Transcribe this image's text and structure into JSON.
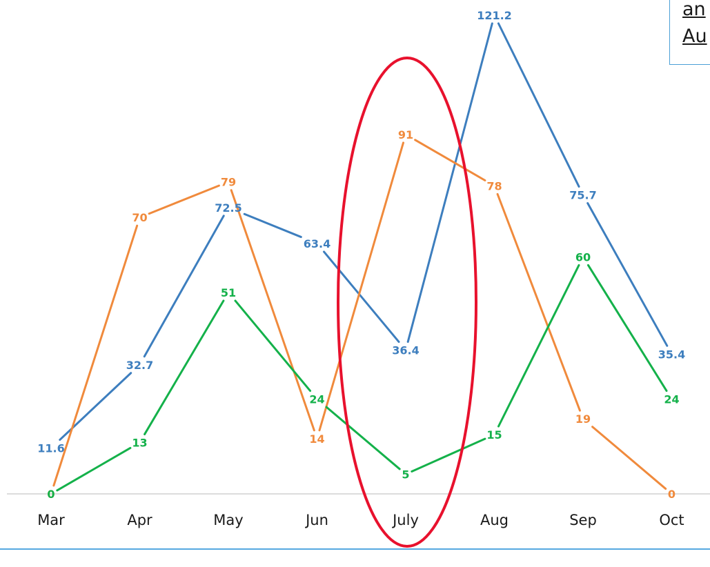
{
  "chart_data": {
    "type": "line",
    "categories": [
      "Mar",
      "Apr",
      "May",
      "Jun",
      "July",
      "Aug",
      "Sep",
      "Oct"
    ],
    "series": [
      {
        "color": "#3d7ebe",
        "values": [
          11.6,
          32.7,
          72.5,
          63.4,
          36.4,
          121.2,
          75.7,
          35.4
        ]
      },
      {
        "color": "#f08a3c",
        "values": [
          0,
          70,
          79,
          14,
          91,
          78,
          19,
          0
        ]
      },
      {
        "color": "#14b14a",
        "values": [
          0,
          13,
          51,
          24,
          5,
          15,
          60,
          24
        ]
      }
    ],
    "ylim": [
      0,
      121.2
    ],
    "grid": false,
    "legend": "none",
    "highlight": {
      "category": "July",
      "color": "#e8112d"
    }
  },
  "callout": {
    "line1": "an",
    "line2": "Au"
  }
}
